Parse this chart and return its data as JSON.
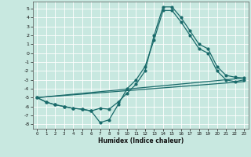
{
  "xlabel": "Humidex (Indice chaleur)",
  "xlim": [
    -0.5,
    23.5
  ],
  "ylim": [
    -8.5,
    5.8
  ],
  "yticks": [
    5,
    4,
    3,
    2,
    1,
    0,
    -1,
    -2,
    -3,
    -4,
    -5,
    -6,
    -7,
    -8
  ],
  "xticks": [
    0,
    1,
    2,
    3,
    4,
    5,
    6,
    7,
    8,
    9,
    10,
    11,
    12,
    13,
    14,
    15,
    16,
    17,
    18,
    19,
    20,
    21,
    22,
    23
  ],
  "bg_color": "#c8e8e0",
  "line_color": "#1a6b6b",
  "grid_color": "#ffffff",
  "line1_x": [
    0,
    1,
    2,
    3,
    4,
    5,
    6,
    7,
    8,
    9,
    10,
    11,
    12,
    13,
    14,
    15,
    16,
    17,
    18,
    19,
    20,
    21,
    22,
    23
  ],
  "line1_y": [
    -5.0,
    -5.5,
    -5.8,
    -6.0,
    -6.2,
    -6.3,
    -6.5,
    -6.2,
    -6.3,
    -5.5,
    -4.5,
    -3.5,
    -2.0,
    2.0,
    5.2,
    5.2,
    4.0,
    2.5,
    1.0,
    0.5,
    -1.5,
    -2.5,
    -2.7,
    -2.8
  ],
  "line2_x": [
    0,
    1,
    2,
    3,
    4,
    5,
    6,
    7,
    8,
    9,
    10,
    11,
    12,
    13,
    14,
    15,
    16,
    17,
    18,
    19,
    20,
    21,
    22,
    23
  ],
  "line2_y": [
    -5.0,
    -5.5,
    -5.8,
    -6.0,
    -6.2,
    -6.3,
    -6.5,
    -7.8,
    -7.5,
    -5.8,
    -4.0,
    -3.0,
    -1.5,
    1.5,
    4.8,
    4.8,
    3.5,
    2.0,
    0.5,
    0.0,
    -2.0,
    -3.0,
    -3.2,
    -3.0
  ],
  "line3_x": [
    0,
    23
  ],
  "line3_y": [
    -5.0,
    -2.8
  ],
  "line4_x": [
    0,
    23
  ],
  "line4_y": [
    -5.0,
    -3.2
  ]
}
